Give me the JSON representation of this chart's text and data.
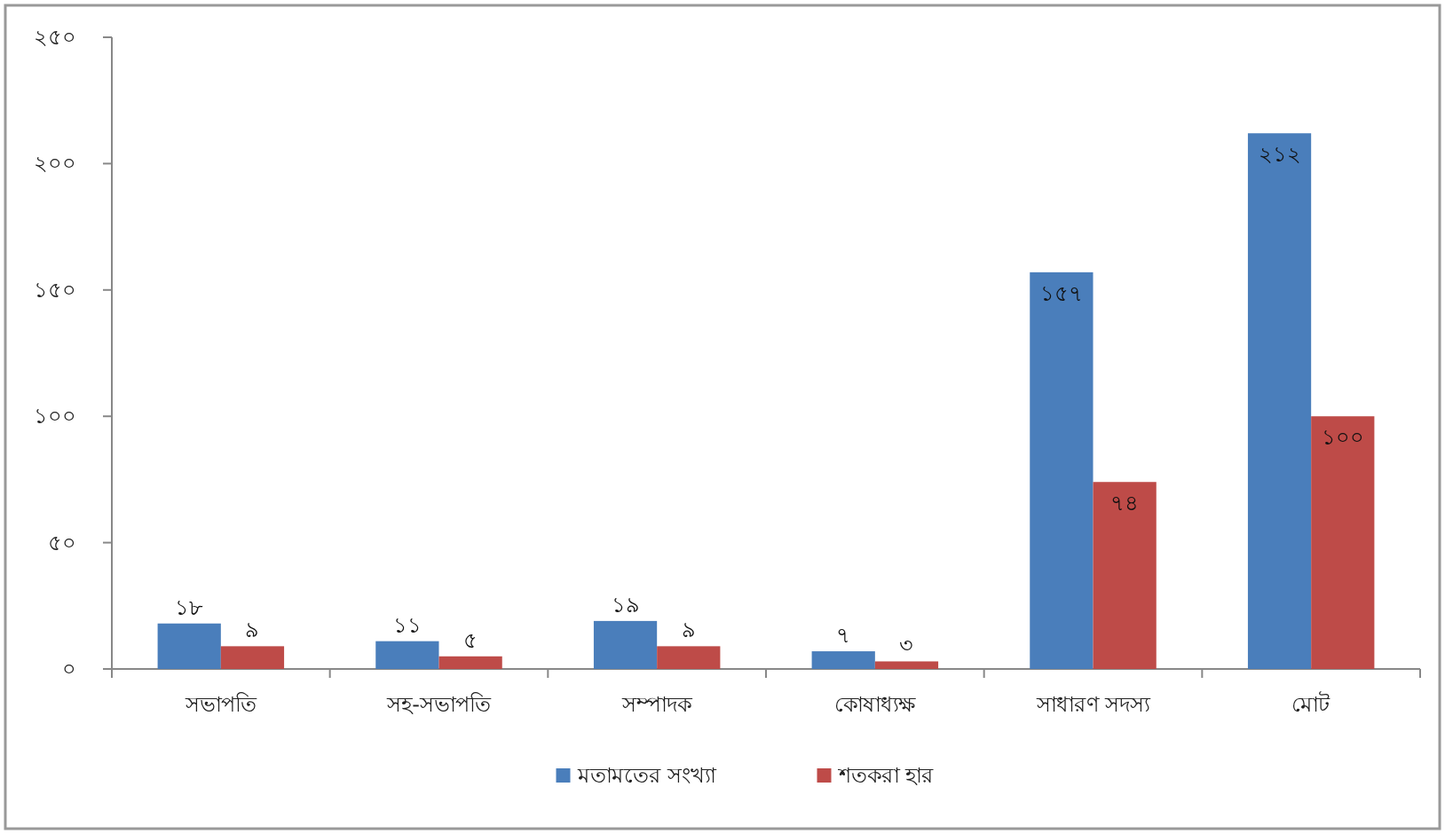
{
  "chart_data": {
    "type": "bar",
    "categories": [
      "সভাপতি",
      "সহ-সভাপতি",
      "সম্পাদক",
      "কোষাধ্যক্ষ",
      "সাধারণ সদস্য",
      "মোট"
    ],
    "series": [
      {
        "name": "মতামতের সংখ্যা",
        "color": "#4a7ebb",
        "values": [
          18,
          11,
          19,
          7,
          157,
          212
        ],
        "value_labels": [
          "১৮",
          "১১",
          "১৯",
          "৭",
          "১৫৭",
          "২১২"
        ]
      },
      {
        "name": "শতকরা হার",
        "color": "#be4b48",
        "values": [
          9,
          5,
          9,
          3,
          74,
          100
        ],
        "value_labels": [
          "৯",
          "৫",
          "৯",
          "৩",
          "৭৪",
          "১০০"
        ]
      }
    ],
    "ylim": [
      0,
      250
    ],
    "yticks": [
      {
        "value": 0,
        "label": "০"
      },
      {
        "value": 50,
        "label": "৫০"
      },
      {
        "value": 100,
        "label": "১০০"
      },
      {
        "value": 150,
        "label": "১৫০"
      },
      {
        "value": 200,
        "label": "২০০"
      },
      {
        "value": 250,
        "label": "২৫০"
      }
    ],
    "grid": false,
    "legend": "bottom"
  }
}
